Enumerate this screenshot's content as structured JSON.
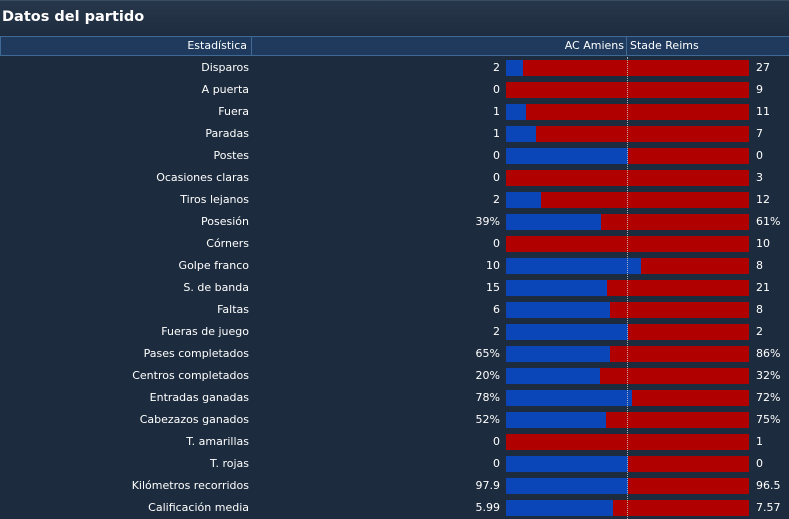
{
  "title": "Datos del partido",
  "header": {
    "stat_label": "Estadística",
    "home_team": "AC Amiens",
    "away_team": "Stade Reims"
  },
  "colors": {
    "home": "#0a46b8",
    "away": "#b00000",
    "background": "#1c2b3d",
    "header": "#1f3a5c"
  },
  "stats": [
    {
      "label": "Disparos",
      "home": "2",
      "away": "27",
      "home_share": 0.069
    },
    {
      "label": "A puerta",
      "home": "0",
      "away": "9",
      "home_share": 0.0
    },
    {
      "label": "Fuera",
      "home": "1",
      "away": "11",
      "home_share": 0.083
    },
    {
      "label": "Paradas",
      "home": "1",
      "away": "7",
      "home_share": 0.125
    },
    {
      "label": "Postes",
      "home": "0",
      "away": "0",
      "home_share": 0.5
    },
    {
      "label": "Ocasiones claras",
      "home": "0",
      "away": "3",
      "home_share": 0.0
    },
    {
      "label": "Tiros lejanos",
      "home": "2",
      "away": "12",
      "home_share": 0.143
    },
    {
      "label": "Posesión",
      "home": "39%",
      "away": "61%",
      "home_share": 0.39
    },
    {
      "label": "Córners",
      "home": "0",
      "away": "10",
      "home_share": 0.0
    },
    {
      "label": "Golpe franco",
      "home": "10",
      "away": "8",
      "home_share": 0.556
    },
    {
      "label": "S. de banda",
      "home": "15",
      "away": "21",
      "home_share": 0.417
    },
    {
      "label": "Faltas",
      "home": "6",
      "away": "8",
      "home_share": 0.429
    },
    {
      "label": "Fueras de juego",
      "home": "2",
      "away": "2",
      "home_share": 0.5
    },
    {
      "label": "Pases completados",
      "home": "65%",
      "away": "86%",
      "home_share": 0.43
    },
    {
      "label": "Centros completados",
      "home": "20%",
      "away": "32%",
      "home_share": 0.385
    },
    {
      "label": "Entradas ganadas",
      "home": "78%",
      "away": "72%",
      "home_share": 0.52
    },
    {
      "label": "Cabezazos ganados",
      "home": "52%",
      "away": "75%",
      "home_share": 0.41
    },
    {
      "label": "T. amarillas",
      "home": "0",
      "away": "1",
      "home_share": 0.0
    },
    {
      "label": "T. rojas",
      "home": "0",
      "away": "0",
      "home_share": 0.5
    },
    {
      "label": "Kilómetros recorridos",
      "home": "97.9",
      "away": "96.5",
      "home_share": 0.504
    },
    {
      "label": "Calificación media",
      "home": "5.99",
      "away": "7.57",
      "home_share": 0.442
    }
  ]
}
